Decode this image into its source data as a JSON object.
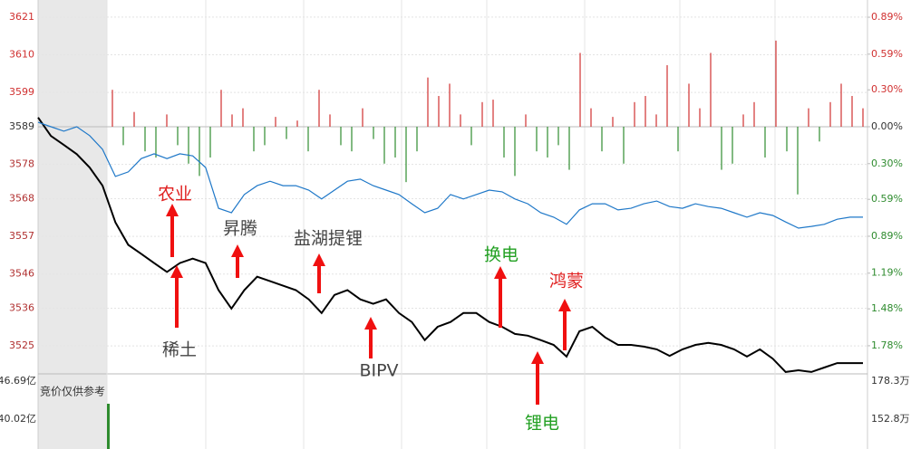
{
  "chart_data": {
    "type": "line",
    "ylim": [
      3515,
      3626
    ],
    "yticks": [
      3621,
      3610,
      3599,
      3589,
      3578,
      3568,
      3557,
      3546,
      3536,
      3525
    ],
    "y2lim": [
      -2.06,
      1.03
    ],
    "y2ticks": [
      {
        "value": 0.89,
        "label": "0.89%"
      },
      {
        "value": 0.59,
        "label": "0.59%"
      },
      {
        "value": 0.3,
        "label": "0.30%"
      },
      {
        "value": 0,
        "label": "0.00%"
      },
      {
        "value": -0.3,
        "label": "0.30%"
      },
      {
        "value": -0.59,
        "label": "0.59%"
      },
      {
        "value": -0.89,
        "label": "0.89%"
      },
      {
        "value": -1.19,
        "label": "1.19%"
      },
      {
        "value": -1.48,
        "label": "1.48%"
      },
      {
        "value": -1.78,
        "label": "1.78%"
      }
    ],
    "base": 3589,
    "series": [
      {
        "color": "#000000",
        "values": [
          3591.7,
          3586.3,
          3583.7,
          3581.0,
          3577.1,
          3571.8,
          3561.1,
          3554.5,
          3551.9,
          3549.2,
          3546.6,
          3549.2,
          3550.5,
          3549.2,
          3541.3,
          3535.9,
          3541.3,
          3545.2,
          3543.9,
          3542.6,
          3541.3,
          3538.6,
          3534.6,
          3539.9,
          3541.3,
          3538.6,
          3537.3,
          3538.6,
          3534.6,
          3532.0,
          3526.7,
          3530.6,
          3532.0,
          3534.6,
          3534.6,
          3532.0,
          3530.6,
          3528.5,
          3528.0,
          3526.7,
          3525.3,
          3521.9,
          3529.3,
          3530.6,
          3527.5,
          3525.3,
          3525.3,
          3524.8,
          3524.0,
          3522.1,
          3524.0,
          3525.3,
          3525.9,
          3525.3,
          3524.0,
          3521.9,
          3524.0,
          3521.3,
          3517.4,
          3517.9,
          3517.4,
          3518.7,
          3520.0,
          3520.0,
          3520.0
        ]
      },
      {
        "color": "#1f78c8",
        "values": [
          3590.3,
          3589.0,
          3587.7,
          3589.0,
          3586.4,
          3582.4,
          3574.5,
          3575.8,
          3579.7,
          3581.1,
          3579.7,
          3581.1,
          3580.5,
          3577.1,
          3565.2,
          3563.9,
          3569.2,
          3571.8,
          3573.1,
          3571.8,
          3571.8,
          3570.5,
          3567.9,
          3570.5,
          3573.1,
          3573.7,
          3571.8,
          3570.5,
          3569.2,
          3566.5,
          3563.9,
          3565.2,
          3569.2,
          3567.9,
          3569.2,
          3570.5,
          3570.0,
          3567.9,
          3566.5,
          3563.9,
          3562.6,
          3560.5,
          3564.7,
          3566.5,
          3566.5,
          3564.7,
          3565.2,
          3566.5,
          3567.3,
          3565.7,
          3565.2,
          3566.5,
          3565.7,
          3565.2,
          3563.9,
          3562.6,
          3563.9,
          3563.1,
          3561.2,
          3559.4,
          3559.9,
          3560.5,
          3562.0,
          3562.6,
          3562.6
        ]
      }
    ],
    "bars": {
      "axis": "y2",
      "up_color": "#d03030",
      "down_color": "#2e8b2e",
      "values": [
        0.3,
        -0.15,
        0.12,
        -0.2,
        -0.25,
        0.1,
        -0.15,
        -0.3,
        -0.4,
        -0.25,
        0.3,
        0.1,
        0.15,
        -0.2,
        -0.15,
        0.08,
        -0.1,
        0.05,
        -0.2,
        0.3,
        0.1,
        -0.15,
        -0.2,
        0.15,
        -0.1,
        -0.3,
        -0.25,
        -0.45,
        -0.2,
        0.4,
        0.25,
        0.35,
        0.1,
        -0.15,
        0.2,
        0.22,
        -0.25,
        -0.4,
        0.1,
        -0.2,
        -0.25,
        -0.15,
        -0.35,
        0.6,
        0.15,
        -0.2,
        0.08,
        -0.3,
        0.2,
        0.25,
        0.1,
        0.5,
        -0.2,
        0.35,
        0.15,
        0.6,
        -0.35,
        -0.3,
        0.1,
        0.2,
        -0.25,
        0.7,
        -0.2,
        -0.55,
        0.15,
        -0.12,
        0.2,
        0.35,
        0.25,
        0.15
      ]
    },
    "annotations": [
      {
        "text": "农业",
        "color": "#e02020"
      },
      {
        "text": "稀土",
        "color": "#444444"
      },
      {
        "text": "昇腾",
        "color": "#444444"
      },
      {
        "text": "盐湖提锂",
        "color": "#444444"
      },
      {
        "text": "BIPV",
        "color": "#444444"
      },
      {
        "text": "换电",
        "color": "#22a022"
      },
      {
        "text": "鸿蒙",
        "color": "#e02020"
      },
      {
        "text": "锂电",
        "color": "#22a022"
      }
    ],
    "volume_labels": {
      "left_top": "46.69亿",
      "left_mid": "40.02亿",
      "right_top": "178.3万",
      "right_mid": "152.8万",
      "note": "竞价仅供参考"
    }
  }
}
